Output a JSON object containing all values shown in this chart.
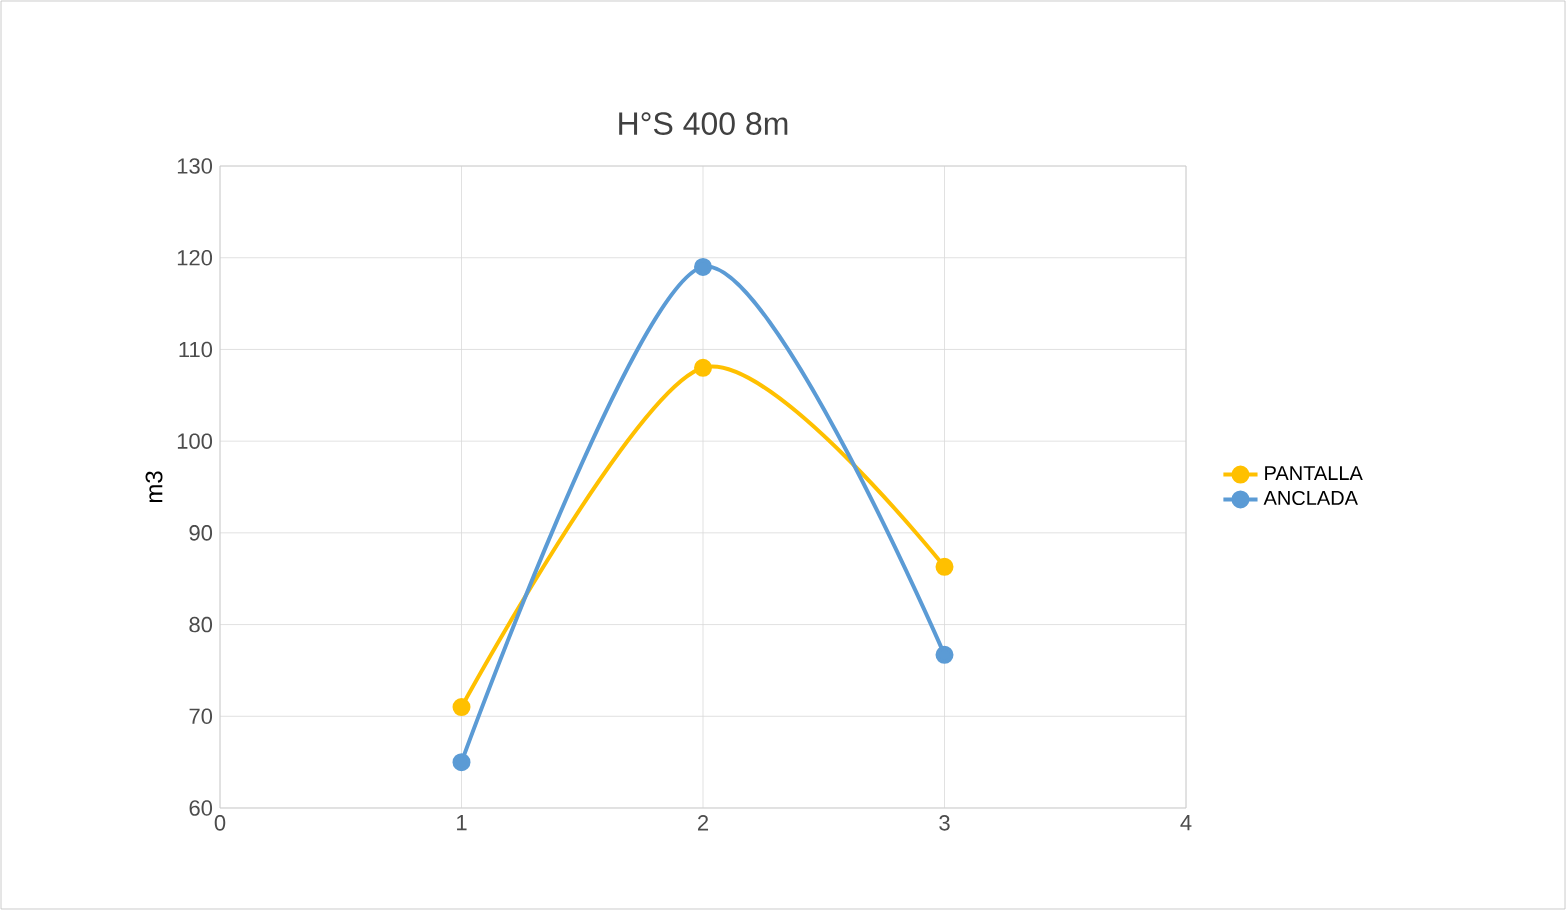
{
  "chart_data": {
    "type": "line",
    "title": "H°S 400 8m",
    "ylabel": "m3",
    "x": [
      1,
      2,
      3
    ],
    "series": [
      {
        "name": "PANTALLA",
        "color": "#ffc000",
        "values": [
          71,
          108,
          86.3
        ]
      },
      {
        "name": "ANCLADA",
        "color": "#5b9bd5",
        "values": [
          65,
          119,
          76.7
        ]
      }
    ],
    "xlim": [
      0,
      4
    ],
    "xticks": [
      0,
      1,
      2,
      3,
      4
    ],
    "ylim": [
      60,
      130
    ],
    "yticks": [
      60,
      70,
      80,
      90,
      100,
      110,
      120,
      130
    ],
    "grid": true,
    "legend": "right",
    "marker": "circle",
    "line_style": "solid"
  }
}
